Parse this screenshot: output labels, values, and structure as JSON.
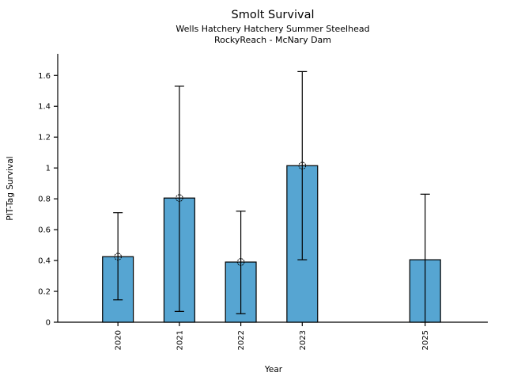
{
  "figure": {
    "title": "Smolt Survival",
    "subtitle_line1": "Wells Hatchery Hatchery Summer Steelhead",
    "subtitle_line2": "RockyReach - McNary Dam",
    "xlabel": "Year",
    "ylabel": "PIT-Tag Survival"
  },
  "chart_data": {
    "type": "bar",
    "title": "Smolt Survival",
    "subtitle": [
      "Wells Hatchery Hatchery Summer Steelhead",
      "RockyReach - McNary Dam"
    ],
    "xlabel": "Year",
    "ylabel": "PIT-Tag Survival",
    "categories": [
      "2020",
      "2021",
      "2022",
      "2023",
      "2025"
    ],
    "x": [
      2020,
      2021,
      2022,
      2023,
      2025
    ],
    "series": [
      {
        "name": "PIT-Tag Survival",
        "values": [
          0.425,
          0.805,
          0.39,
          1.015,
          0.405
        ],
        "error_low": [
          0.145,
          0.07,
          0.055,
          0.405,
          0.0
        ],
        "error_high": [
          0.71,
          1.53,
          0.72,
          1.625,
          0.83
        ],
        "point_marker": [
          true,
          true,
          true,
          true,
          false
        ]
      }
    ],
    "yticks": [
      0,
      0.2,
      0.4,
      0.6,
      0.8,
      1,
      1.2,
      1.4,
      1.6
    ],
    "ytick_labels": [
      "0",
      "0.2",
      "0.4",
      "0.6",
      "0.8",
      "1",
      "1.2",
      "1.4",
      "1.6"
    ],
    "ylim": [
      0,
      1.74
    ],
    "xlim": [
      2019.02,
      2026.02
    ],
    "xtick_rotation_deg": 90,
    "grid": false,
    "legend": null,
    "bar_color": "#56a5d2",
    "bar_edge_color": "#000000",
    "errorbar_color": "#000000",
    "marker_shape": "open-circle",
    "bar_width_years": 0.5
  }
}
